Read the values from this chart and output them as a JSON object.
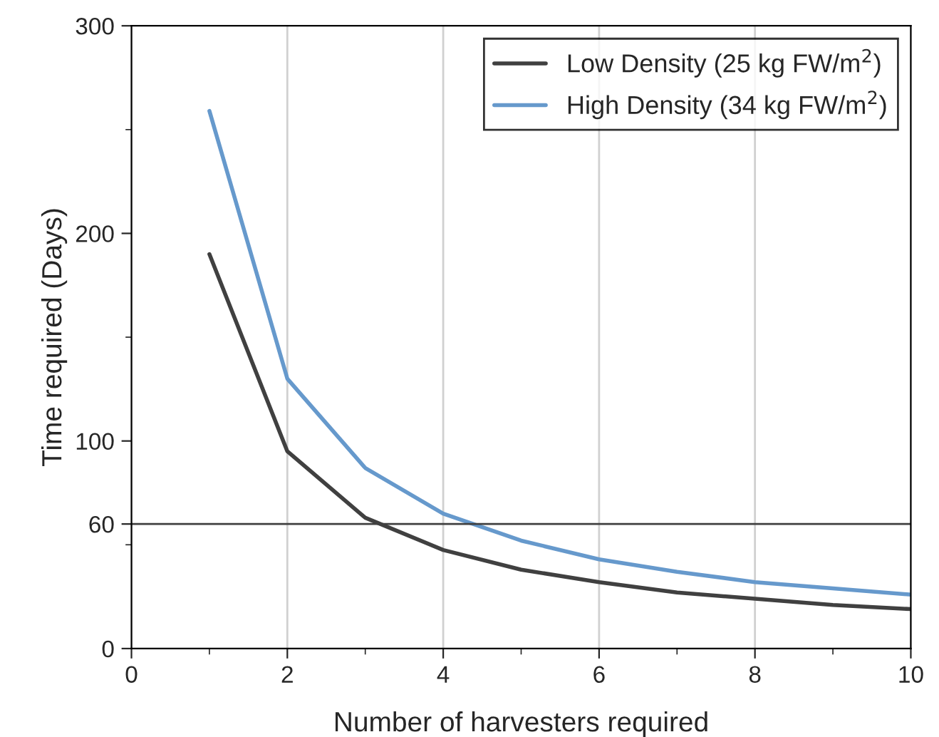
{
  "chart_data": {
    "type": "line",
    "xlabel": "Number of harvesters required",
    "ylabel": "Time required (Days)",
    "x": [
      1,
      2,
      3,
      4,
      5,
      6,
      7,
      8,
      9,
      10
    ],
    "series": [
      {
        "name": "Low Density (25 kg FW/m$^{2}$)",
        "color": "#404040",
        "values": [
          190,
          95,
          63,
          47.5,
          38,
          32,
          27,
          24,
          21,
          19
        ]
      },
      {
        "name": "High Density (34 kg FW/m$^{2}$)",
        "color": "#6699cc",
        "values": [
          259,
          130,
          87,
          65,
          52,
          43,
          37,
          32,
          29,
          26
        ]
      }
    ],
    "xlim": [
      0,
      10
    ],
    "xticks": [
      0,
      {
        "value": 1,
        "label": null
      },
      2,
      {
        "value": 3,
        "label": null
      },
      4,
      {
        "value": 5,
        "label": null
      },
      6,
      {
        "value": 7,
        "label": null
      },
      8,
      {
        "value": 9,
        "label": null
      },
      10
    ],
    "ylim": [
      0,
      300
    ],
    "yticks": [
      0,
      {
        "value": 50,
        "label": null
      },
      60,
      100,
      {
        "value": 150,
        "label": null
      },
      200,
      {
        "value": 250,
        "label": null
      },
      300
    ],
    "ref_lines": [
      {
        "axis": "y",
        "value": 60,
        "color": "#404040",
        "line_style": "solid"
      }
    ],
    "grid": "x",
    "legend": "top right",
    "marker": "none",
    "line_style": "solid"
  }
}
